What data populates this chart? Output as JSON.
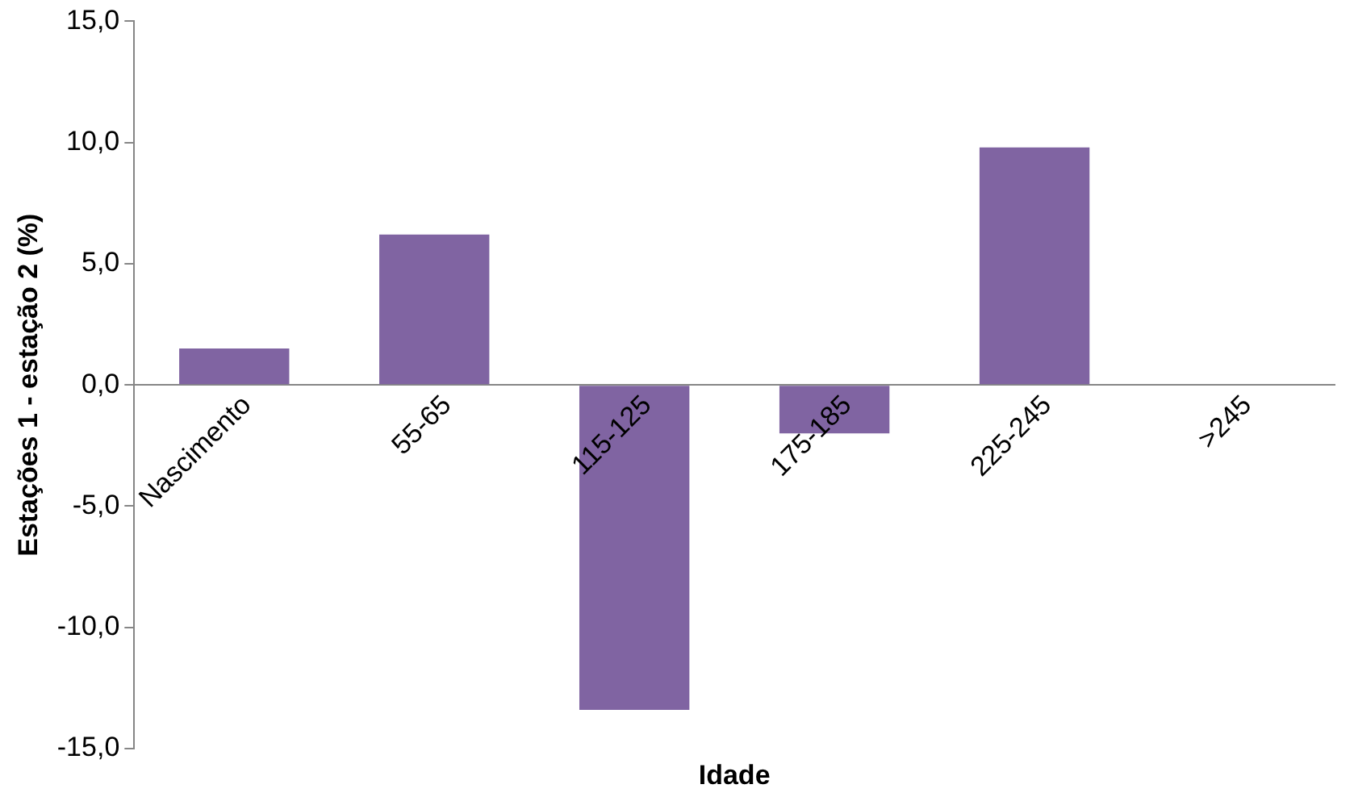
{
  "chart_data": {
    "type": "bar",
    "xlabel": "Idade",
    "ylabel": "Estações 1 - estação 2 (%)",
    "categories": [
      "Nascimento",
      "55-65",
      "115-125",
      "175-185",
      "225-245",
      ">245"
    ],
    "values": [
      1.5,
      6.2,
      -13.4,
      -2.0,
      9.8,
      null
    ],
    "color": "#8064a2",
    "ylim": [
      -15,
      15
    ],
    "yticks": [
      {
        "value": -15,
        "label": "-15,0"
      },
      {
        "value": -10,
        "label": "-10,0"
      },
      {
        "value": -5,
        "label": "-5,0"
      },
      {
        "value": 0,
        "label": "0,0"
      },
      {
        "value": 5,
        "label": "5,0"
      },
      {
        "value": 10,
        "label": "10,0"
      },
      {
        "value": 15,
        "label": "15,0"
      }
    ],
    "grid": false,
    "legend": false
  }
}
